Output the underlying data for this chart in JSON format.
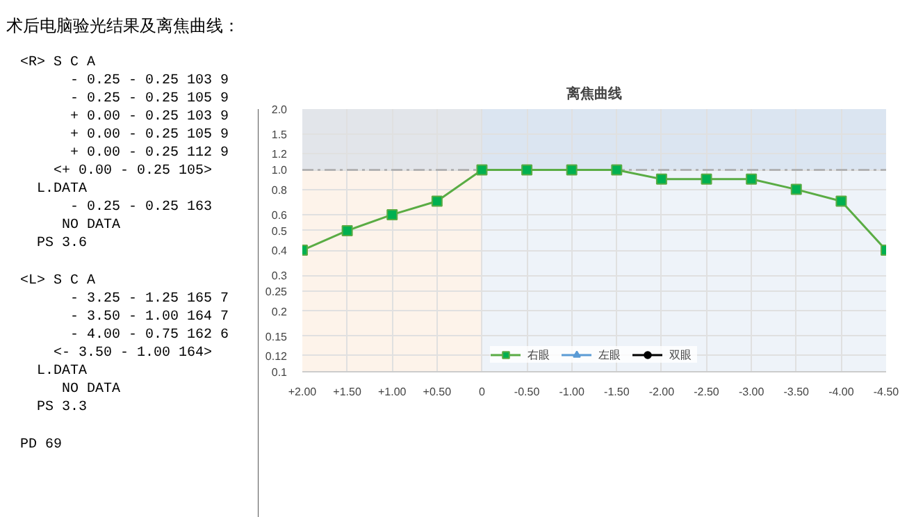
{
  "chart_data": [
    {
      "type": "other",
      "title": "术后电脑验光结果及离焦曲线：",
      "annotations": [
        "<R>    S     C     A",
        "      - 0.25 - 0.25 103  9",
        "      - 0.25 - 0.25 105  9",
        "      + 0.00 - 0.25 103  9",
        "      + 0.00 - 0.25 105  9",
        "      + 0.00 - 0.25 112  9",
        "    <+ 0.00 - 0.25 105>",
        "  L.DATA",
        "      - 0.25 - 0.25 163",
        "     NO DATA",
        "  PS  3.6",
        "<L>    S     C     A",
        "      - 3.25 - 1.25 165  7",
        "      - 3.50 - 1.00 164  7",
        "      - 4.00 - 0.75 162  6",
        "    <- 3.50 - 1.00 164>",
        "  L.DATA",
        "     NO DATA",
        "  PS  3.3",
        "PD 69"
      ]
    },
    {
      "type": "line",
      "title": "离焦曲线",
      "categories": [
        "+2.00",
        "+1.50",
        "+1.00",
        "+0.50",
        "0",
        "-0.50",
        "-1.00",
        "-1.50",
        "-2.00",
        "-2.50",
        "-3.00",
        "-3.50",
        "-4.00",
        "-4.50"
      ],
      "series": [
        {
          "name": "右眼",
          "color": "#5aac44",
          "marker": "square",
          "values": [
            0.4,
            0.5,
            0.6,
            0.7,
            1.0,
            1.0,
            1.0,
            1.0,
            0.9,
            0.9,
            0.9,
            0.8,
            0.7,
            0.4
          ]
        },
        {
          "name": "左眼",
          "color": "#5b9bd5",
          "marker": "triangle",
          "values": [
            null,
            null,
            null,
            null,
            null,
            null,
            null,
            null,
            null,
            null,
            null,
            null,
            null,
            null
          ]
        },
        {
          "name": "双眼",
          "color": "#000000",
          "marker": "circle",
          "values": [
            null,
            null,
            null,
            null,
            null,
            null,
            null,
            null,
            null,
            null,
            null,
            null,
            null,
            null
          ]
        }
      ],
      "log": true,
      "ylim": [
        0.1,
        2.0
      ],
      "yticks": [
        {
          "value": 0.1,
          "label": "0.1"
        },
        {
          "value": 0.12,
          "label": "0.12"
        },
        {
          "value": 0.15,
          "label": "0.15"
        },
        0.2,
        0.25,
        0.3,
        0.4,
        0.5,
        0.6,
        0.8,
        {
          "value": 1,
          "label": "1.0"
        },
        1.2,
        1.5,
        {
          "value": 2,
          "label": "2.0"
        }
      ],
      "ref_lines": [
        {
          "axis": "y",
          "value": 1,
          "color": "#aaaaaa",
          "line_style": "dashed"
        }
      ],
      "bands": [
        {
          "axis": "x",
          "from": "+2.00",
          "to": "0",
          "color": "#fdf3ea"
        },
        {
          "axis": "x",
          "from": "0",
          "to": "-4.50",
          "color": "#eef3f9"
        },
        {
          "axis": "y",
          "from": 1,
          "to": 2,
          "color": "#c8d8ea"
        }
      ],
      "grid": true,
      "legend": "bottom"
    }
  ]
}
